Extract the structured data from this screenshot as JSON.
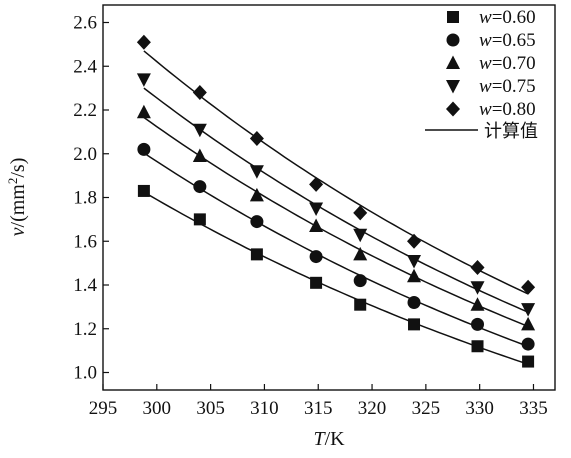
{
  "chart_data": {
    "type": "scatter",
    "xlabel": {
      "var": "T",
      "unit": "/K"
    },
    "ylabel": {
      "var": "v",
      "unit_pre": "/(mm",
      "sup": "2",
      "unit_post": "/s)"
    },
    "xlim": [
      295,
      337
    ],
    "ylim": [
      0.92,
      2.68
    ],
    "x_ticks": [
      295,
      300,
      305,
      310,
      315,
      320,
      325,
      330,
      335
    ],
    "y_ticks": [
      1.0,
      1.2,
      1.4,
      1.6,
      1.8,
      2.0,
      2.2,
      2.4,
      2.6
    ],
    "x_tick_labels": [
      "295",
      "300",
      "305",
      "310",
      "315",
      "320",
      "325",
      "330",
      "335"
    ],
    "y_tick_labels": [
      "1.0",
      "1.2",
      "1.4",
      "1.6",
      "1.8",
      "2.0",
      "2.2",
      "2.4",
      "2.6"
    ],
    "x": [
      298.8,
      304.0,
      309.3,
      314.8,
      318.9,
      323.9,
      329.8,
      334.5
    ],
    "series": [
      {
        "name": "w=0.60",
        "var": "w",
        "val": "=0.60",
        "marker": "square",
        "values": [
          1.83,
          1.7,
          1.54,
          1.41,
          1.31,
          1.22,
          1.12,
          1.05
        ]
      },
      {
        "name": "w=0.65",
        "var": "w",
        "val": "=0.65",
        "marker": "circle",
        "values": [
          2.02,
          1.85,
          1.69,
          1.53,
          1.42,
          1.32,
          1.22,
          1.13
        ]
      },
      {
        "name": "w=0.70",
        "var": "w",
        "val": "=0.70",
        "marker": "triangle-up",
        "values": [
          2.19,
          1.99,
          1.81,
          1.67,
          1.54,
          1.44,
          1.31,
          1.22
        ]
      },
      {
        "name": "w=0.75",
        "var": "w",
        "val": "=0.75",
        "marker": "triangle-down",
        "values": [
          2.34,
          2.11,
          1.92,
          1.75,
          1.63,
          1.51,
          1.39,
          1.29
        ]
      },
      {
        "name": "w=0.80",
        "var": "w",
        "val": "=0.80",
        "marker": "diamond",
        "values": [
          2.51,
          2.28,
          2.07,
          1.86,
          1.73,
          1.6,
          1.48,
          1.39
        ]
      }
    ],
    "fit_line": {
      "name": "计算值"
    },
    "legend": "top-right",
    "grid": false,
    "color": "#111111"
  }
}
